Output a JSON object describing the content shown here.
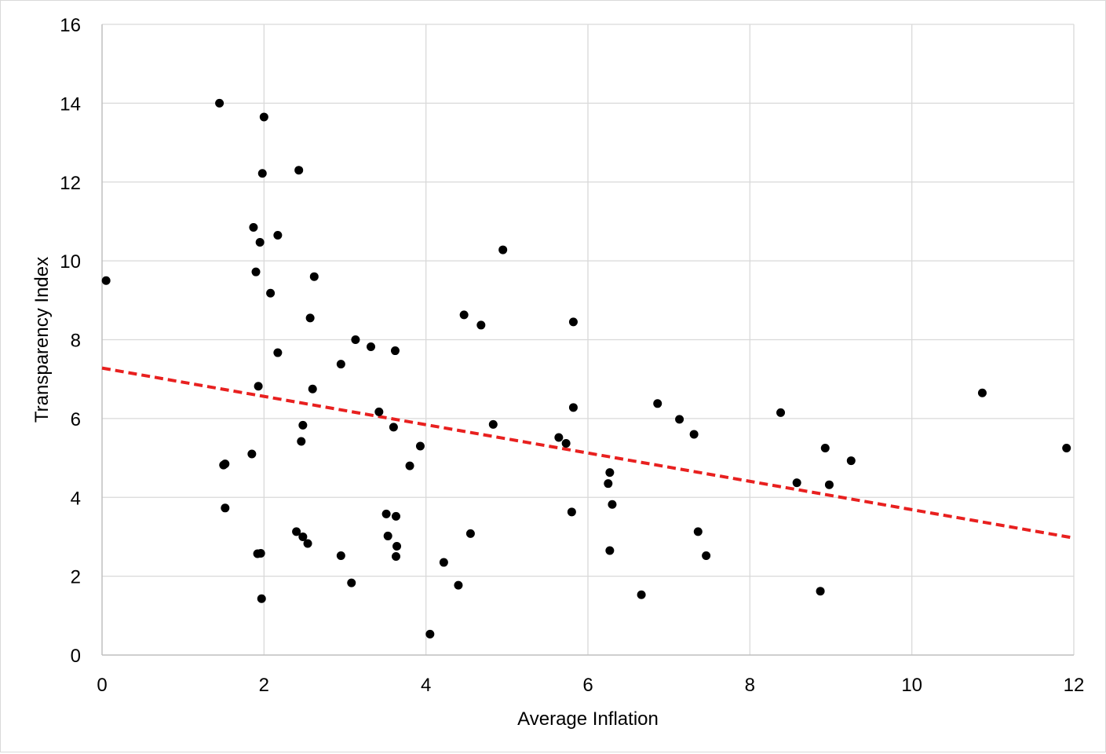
{
  "chart_data": {
    "type": "scatter",
    "xlabel": "Average Inflation",
    "ylabel": "Transparency Index",
    "xlim": [
      0,
      12
    ],
    "ylim": [
      0,
      16
    ],
    "x_ticks": [
      0,
      2,
      4,
      6,
      8,
      10,
      12
    ],
    "y_ticks": [
      0,
      2,
      4,
      6,
      8,
      10,
      12,
      14,
      16
    ],
    "x_tick_labels": [
      "0",
      "2",
      "4",
      "6",
      "8",
      "10",
      "12"
    ],
    "y_tick_labels": [
      "0",
      "2",
      "4",
      "6",
      "8",
      "10",
      "12",
      "14",
      "16"
    ],
    "grid": true,
    "colors": {
      "points": "#000000",
      "trendline": "#e8201f",
      "grid": "#d9d9d9",
      "axis": "#bfbfbf"
    },
    "series": [
      {
        "points": [
          [
            0.05,
            9.5
          ],
          [
            1.45,
            14.0
          ],
          [
            2.0,
            13.65
          ],
          [
            1.98,
            12.22
          ],
          [
            2.43,
            12.3
          ],
          [
            1.87,
            10.85
          ],
          [
            2.17,
            10.65
          ],
          [
            1.95,
            10.47
          ],
          [
            1.9,
            9.72
          ],
          [
            2.62,
            9.6
          ],
          [
            2.08,
            9.18
          ],
          [
            2.57,
            8.55
          ],
          [
            2.17,
            7.67
          ],
          [
            1.93,
            6.82
          ],
          [
            2.6,
            6.75
          ],
          [
            1.85,
            5.1
          ],
          [
            1.5,
            4.82
          ],
          [
            1.52,
            4.85
          ],
          [
            1.52,
            3.73
          ],
          [
            1.92,
            2.57
          ],
          [
            1.96,
            2.58
          ],
          [
            1.97,
            1.43
          ],
          [
            2.48,
            5.83
          ],
          [
            2.46,
            5.42
          ],
          [
            2.4,
            3.13
          ],
          [
            2.48,
            3.0
          ],
          [
            2.54,
            2.83
          ],
          [
            2.95,
            7.38
          ],
          [
            2.95,
            2.52
          ],
          [
            3.08,
            1.83
          ],
          [
            3.13,
            8.0
          ],
          [
            3.32,
            7.82
          ],
          [
            3.42,
            6.17
          ],
          [
            3.51,
            3.58
          ],
          [
            3.53,
            3.02
          ],
          [
            3.6,
            5.78
          ],
          [
            3.62,
            7.72
          ],
          [
            3.63,
            3.52
          ],
          [
            3.64,
            2.76
          ],
          [
            3.63,
            2.5
          ],
          [
            3.8,
            4.8
          ],
          [
            3.93,
            5.3
          ],
          [
            4.05,
            0.53
          ],
          [
            4.22,
            2.35
          ],
          [
            4.4,
            1.77
          ],
          [
            4.47,
            8.63
          ],
          [
            4.55,
            3.08
          ],
          [
            4.68,
            8.37
          ],
          [
            4.83,
            5.85
          ],
          [
            4.95,
            10.28
          ],
          [
            5.64,
            5.52
          ],
          [
            5.73,
            5.37
          ],
          [
            5.8,
            3.63
          ],
          [
            5.82,
            8.45
          ],
          [
            5.82,
            6.28
          ],
          [
            6.25,
            4.35
          ],
          [
            6.27,
            4.63
          ],
          [
            6.27,
            2.65
          ],
          [
            6.3,
            3.82
          ],
          [
            6.66,
            1.53
          ],
          [
            6.86,
            6.38
          ],
          [
            7.13,
            5.98
          ],
          [
            7.31,
            5.6
          ],
          [
            7.36,
            3.13
          ],
          [
            7.46,
            2.52
          ],
          [
            8.38,
            6.15
          ],
          [
            8.58,
            4.37
          ],
          [
            8.87,
            1.62
          ],
          [
            8.93,
            5.25
          ],
          [
            8.98,
            4.32
          ],
          [
            9.25,
            4.93
          ],
          [
            10.87,
            6.65
          ],
          [
            11.91,
            5.25
          ]
        ]
      }
    ],
    "trendline": {
      "style": "dashed",
      "x": [
        0,
        12
      ],
      "y": [
        7.28,
        2.97
      ]
    }
  }
}
